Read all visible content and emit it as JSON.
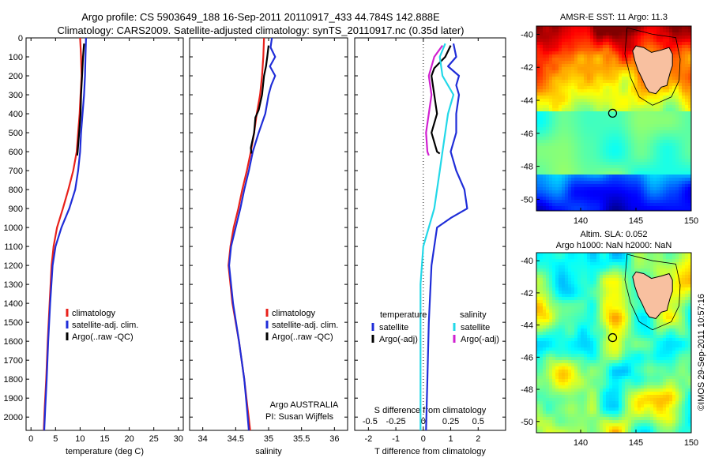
{
  "header": {
    "title_line1": "Argo profile: CS 5903649_188 16-Sep-2011 20110917_433 44.784S 142.888E",
    "title_line2": "Climatology: CARS2009. Satellite-adjusted climatology: synTS_20110917.nc (0.35d later)"
  },
  "side_label": "©IMOS 29-Sep-2011 10:57:16",
  "colors": {
    "climatology": "#e8201a",
    "satellite": "#1f2dd8",
    "argo": "#000000",
    "salinity_sat": "#22d8e8",
    "salinity_argo": "#d020d0",
    "land": "#f8c0a0"
  },
  "chart_data": [
    {
      "type": "line",
      "id": "temperature",
      "xlabel": "temperature (deg C)",
      "ylim": [
        2070,
        0
      ],
      "xlim": [
        -1,
        31
      ],
      "xticks": [
        0,
        5,
        10,
        15,
        20,
        25,
        30
      ],
      "yticks": [
        0,
        100,
        200,
        300,
        400,
        500,
        600,
        700,
        800,
        900,
        1000,
        1100,
        1200,
        1300,
        1400,
        1500,
        1600,
        1700,
        1800,
        1900,
        2000
      ],
      "legend": [
        "climatology",
        "satellite-adj. clim.",
        "Argo(..raw -QC)"
      ],
      "series": [
        {
          "name": "climatology",
          "color": "climatology",
          "points": [
            [
              10.0,
              0
            ],
            [
              10.2,
              100
            ],
            [
              10.3,
              200
            ],
            [
              10.1,
              300
            ],
            [
              9.9,
              400
            ],
            [
              9.6,
              500
            ],
            [
              9.3,
              600
            ],
            [
              8.6,
              700
            ],
            [
              7.6,
              800
            ],
            [
              6.5,
              900
            ],
            [
              5.3,
              1000
            ],
            [
              4.6,
              1100
            ],
            [
              4.2,
              1200
            ],
            [
              3.8,
              1400
            ],
            [
              3.4,
              1600
            ],
            [
              3.1,
              1800
            ],
            [
              2.8,
              1950
            ],
            [
              2.6,
              2070
            ]
          ]
        },
        {
          "name": "satellite-adj. clim.",
          "color": "satellite",
          "points": [
            [
              11.2,
              0
            ],
            [
              11.1,
              100
            ],
            [
              11.0,
              200
            ],
            [
              10.8,
              300
            ],
            [
              10.5,
              400
            ],
            [
              10.2,
              500
            ],
            [
              10.0,
              600
            ],
            [
              9.6,
              700
            ],
            [
              9.0,
              800
            ],
            [
              7.8,
              900
            ],
            [
              6.2,
              1000
            ],
            [
              5.0,
              1100
            ],
            [
              4.4,
              1200
            ],
            [
              3.9,
              1400
            ],
            [
              3.5,
              1600
            ],
            [
              3.2,
              1800
            ],
            [
              2.9,
              1950
            ],
            [
              2.7,
              2070
            ]
          ]
        },
        {
          "name": "Argo(..raw -QC)",
          "color": "argo",
          "points": [
            [
              10.8,
              30
            ],
            [
              10.6,
              100
            ],
            [
              10.4,
              200
            ],
            [
              10.2,
              300
            ],
            [
              10.1,
              400
            ],
            [
              9.8,
              500
            ],
            [
              9.5,
              600
            ],
            [
              9.4,
              620
            ]
          ]
        }
      ]
    },
    {
      "type": "line",
      "id": "salinity",
      "xlabel": "salinity",
      "ylim": [
        2070,
        0
      ],
      "xlim": [
        33.8,
        36.2
      ],
      "xticks": [
        34,
        34.5,
        35,
        35.5,
        36
      ],
      "legend": [
        "climatology",
        "satellite-adj. clim.",
        "Argo(..raw -QC)"
      ],
      "annotation_line1": "Argo AUSTRALIA",
      "annotation_line2": "PI: Susan Wijffels",
      "series": [
        {
          "name": "climatology",
          "color": "climatology",
          "points": [
            [
              34.93,
              0
            ],
            [
              34.92,
              100
            ],
            [
              34.9,
              200
            ],
            [
              34.87,
              300
            ],
            [
              34.82,
              400
            ],
            [
              34.78,
              500
            ],
            [
              34.73,
              600
            ],
            [
              34.67,
              700
            ],
            [
              34.6,
              800
            ],
            [
              34.54,
              900
            ],
            [
              34.47,
              1000
            ],
            [
              34.42,
              1100
            ],
            [
              34.39,
              1200
            ],
            [
              34.45,
              1400
            ],
            [
              34.55,
              1600
            ],
            [
              34.63,
              1800
            ],
            [
              34.68,
              1950
            ],
            [
              34.72,
              2070
            ]
          ]
        },
        {
          "name": "satellite-adj. clim.",
          "color": "satellite",
          "points": [
            [
              35.05,
              0
            ],
            [
              35.03,
              50
            ],
            [
              35.1,
              100
            ],
            [
              35.02,
              150
            ],
            [
              35.1,
              200
            ],
            [
              35.04,
              250
            ],
            [
              35.0,
              300
            ],
            [
              34.95,
              400
            ],
            [
              34.85,
              500
            ],
            [
              34.76,
              600
            ],
            [
              34.7,
              700
            ],
            [
              34.63,
              800
            ],
            [
              34.57,
              900
            ],
            [
              34.5,
              1000
            ],
            [
              34.43,
              1100
            ],
            [
              34.4,
              1200
            ],
            [
              34.46,
              1400
            ],
            [
              34.55,
              1600
            ],
            [
              34.63,
              1800
            ],
            [
              34.67,
              1950
            ],
            [
              34.7,
              2070
            ]
          ]
        },
        {
          "name": "Argo(..raw -QC)",
          "color": "argo",
          "points": [
            [
              35.0,
              40
            ],
            [
              34.98,
              100
            ],
            [
              34.96,
              150
            ],
            [
              34.93,
              200
            ],
            [
              34.9,
              300
            ],
            [
              34.85,
              380
            ],
            [
              34.8,
              420
            ],
            [
              34.78,
              500
            ],
            [
              34.73,
              580
            ],
            [
              34.74,
              610
            ]
          ]
        }
      ]
    },
    {
      "type": "line",
      "id": "difference",
      "xlabel": "T difference from climatology",
      "xlabel_top": "S difference from climatology",
      "ylim": [
        2070,
        0
      ],
      "xlim": [
        -2.5,
        3
      ],
      "xticks": [
        -2,
        -1,
        0,
        1,
        2
      ],
      "xticks_top": [
        "-0.5",
        "-0.25",
        "0",
        "0.25",
        "0.5"
      ],
      "legend_titles": [
        "temperature",
        "salinity"
      ],
      "legend": [
        "satellite",
        "Argo(-adj)",
        "satellite",
        "Argo(-adj)"
      ],
      "series": [
        {
          "name": "satellite",
          "group": "temperature",
          "color": "satellite",
          "points": [
            [
              1.1,
              30
            ],
            [
              1.2,
              100
            ],
            [
              0.9,
              150
            ],
            [
              1.3,
              200
            ],
            [
              1.2,
              250
            ],
            [
              1.3,
              300
            ],
            [
              1.2,
              400
            ],
            [
              1.2,
              500
            ],
            [
              1.0,
              600
            ],
            [
              1.2,
              700
            ],
            [
              1.5,
              800
            ],
            [
              1.6,
              900
            ],
            [
              1.0,
              950
            ],
            [
              0.5,
              1000
            ],
            [
              0.3,
              1200
            ],
            [
              0.2,
              1500
            ],
            [
              0.15,
              1800
            ],
            [
              0.1,
              2070
            ]
          ]
        },
        {
          "name": "Argo(-adj)",
          "group": "temperature",
          "color": "argo",
          "points": [
            [
              1.0,
              40
            ],
            [
              0.8,
              100
            ],
            [
              0.4,
              160
            ],
            [
              0.3,
              200
            ],
            [
              0.4,
              300
            ],
            [
              0.5,
              400
            ],
            [
              0.3,
              500
            ],
            [
              0.5,
              600
            ],
            [
              0.6,
              610
            ]
          ]
        },
        {
          "name": "satellite",
          "group": "salinity",
          "color": "salinity_sat",
          "points": [
            [
              0.8,
              30
            ],
            [
              0.6,
              100
            ],
            [
              0.7,
              200
            ],
            [
              1.1,
              300
            ],
            [
              0.9,
              400
            ],
            [
              0.8,
              500
            ],
            [
              0.7,
              600
            ],
            [
              0.6,
              700
            ],
            [
              0.5,
              800
            ],
            [
              0.4,
              900
            ],
            [
              0.2,
              1000
            ],
            [
              0.0,
              1100
            ],
            [
              -0.1,
              1300
            ],
            [
              -0.1,
              1600
            ],
            [
              -0.1,
              1900
            ],
            [
              -0.1,
              2070
            ]
          ]
        },
        {
          "name": "Argo(-adj)",
          "group": "salinity",
          "color": "salinity_argo",
          "points": [
            [
              0.7,
              40
            ],
            [
              0.4,
              100
            ],
            [
              0.2,
              200
            ],
            [
              0.3,
              300
            ],
            [
              0.2,
              400
            ],
            [
              0.1,
              500
            ],
            [
              0.15,
              600
            ],
            [
              0.2,
              620
            ]
          ]
        }
      ]
    },
    {
      "type": "heatmap",
      "id": "sst_map",
      "title": "AMSR-E SST: 11 Argo: 11.3",
      "xlim": [
        136,
        150
      ],
      "ylim": [
        -50.7,
        -39.5
      ],
      "xticks": [
        140,
        145,
        150
      ],
      "yticks": [
        -40,
        -42,
        -44,
        -46,
        -48,
        -50
      ],
      "marker": [
        142.888,
        -44.784
      ],
      "scheme": "sst"
    },
    {
      "type": "heatmap",
      "id": "sla_map",
      "title_line1": "Altim. SLA: 0.052",
      "title_line2": "Argo h1000: NaN h2000: NaN",
      "xlim": [
        136,
        150
      ],
      "ylim": [
        -50.7,
        -39.5
      ],
      "xticks": [
        140,
        145,
        150
      ],
      "yticks": [
        -40,
        -42,
        -44,
        -46,
        -48,
        -50
      ],
      "marker": [
        142.888,
        -44.784
      ],
      "scheme": "sla"
    }
  ]
}
